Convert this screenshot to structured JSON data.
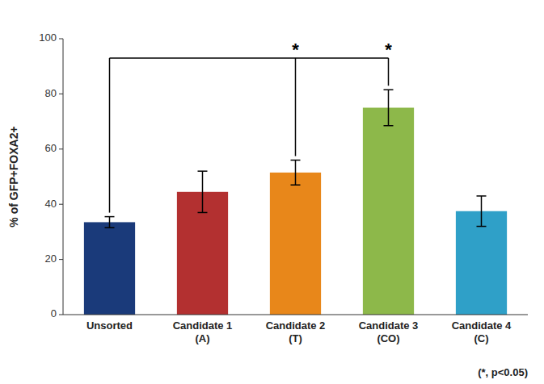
{
  "chart_data": {
    "type": "bar",
    "categories": [
      "Unsorted",
      "Candidate 1\n(A)",
      "Candidate 2\n(T)",
      "Candidate 3\n(CO)",
      "Candidate 4\n(C)"
    ],
    "values": [
      33.5,
      44.5,
      51.5,
      75.0,
      37.5
    ],
    "errors": [
      2.0,
      7.5,
      4.5,
      6.5,
      5.5
    ],
    "colors": [
      "#1a3a7a",
      "#b33030",
      "#e8871a",
      "#8db84a",
      "#2fa0c8"
    ],
    "ylabel": "% of GFP+FOXA2+",
    "ylim": [
      0,
      100
    ],
    "yticks": [
      0,
      20,
      40,
      60,
      80,
      100
    ],
    "grid": false,
    "annotation": "(*, p<0.05)",
    "bracket": {
      "y": 93,
      "start": 0,
      "marks": [
        2,
        3
      ],
      "label": "*"
    }
  }
}
